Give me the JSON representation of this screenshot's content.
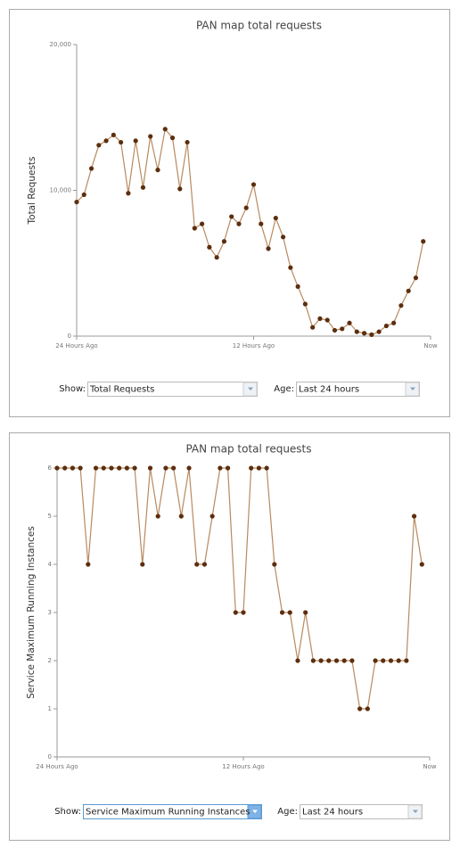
{
  "chart_data": [
    {
      "type": "line",
      "title": "PAN map total requests",
      "y_label": "Total Requests",
      "x": [
        -24,
        -23.5,
        -23,
        -22.5,
        -22,
        -21.5,
        -21,
        -20.5,
        -20,
        -19.5,
        -19,
        -18.5,
        -18,
        -17.5,
        -17,
        -16.5,
        -16,
        -15.5,
        -15,
        -14.5,
        -14,
        -13.5,
        -13,
        -12.5,
        -12,
        -11.5,
        -11,
        -10.5,
        -10,
        -9.5,
        -9,
        -8.5,
        -8,
        -7.5,
        -7,
        -6.5,
        -6,
        -5.5,
        -5,
        -4.5,
        -4,
        -3.5,
        -3,
        -2.5,
        -2,
        -1.5,
        -1,
        -0.5
      ],
      "series": [
        {
          "name": "Total Requests",
          "color": "#b88a60",
          "marker_color": "#5c2e0e",
          "values": [
            9200,
            9700,
            11500,
            13100,
            13400,
            13800,
            13300,
            9800,
            13400,
            10200,
            13700,
            11400,
            14200,
            13600,
            10100,
            13300,
            7400,
            7700,
            6100,
            5400,
            6500,
            8200,
            7700,
            8800,
            10400,
            7700,
            6000,
            8100,
            6800,
            4700,
            3400,
            2200,
            600,
            1200,
            1100,
            400,
            500,
            900,
            300,
            200,
            100,
            300,
            700,
            900,
            2100,
            3100,
            4000,
            6500
          ]
        }
      ],
      "xlim": [
        -24,
        0
      ],
      "xticks": [
        {
          "value": -24,
          "label": "24 Hours Ago"
        },
        {
          "value": -12,
          "label": "12 Hours Ago"
        },
        {
          "value": 0,
          "label": "Now"
        }
      ],
      "ylim": [
        0,
        20000
      ],
      "yticks": [
        0,
        {
          "value": 10000,
          "label": "10,000"
        },
        {
          "value": 20000,
          "label": "20,000"
        }
      ]
    },
    {
      "type": "line",
      "title": "PAN map total requests",
      "y_label": "Service Maximum Running Instances",
      "x": [
        -24,
        -23.5,
        -23,
        -22.5,
        -22,
        -21.5,
        -21,
        -20.5,
        -20,
        -19.5,
        -19,
        -18.5,
        -18,
        -17.5,
        -17,
        -16.5,
        -16,
        -15.5,
        -15,
        -14.5,
        -14,
        -13.5,
        -13,
        -12.5,
        -12,
        -11.5,
        -11,
        -10.5,
        -10,
        -9.5,
        -9,
        -8.5,
        -8,
        -7.5,
        -7,
        -6.5,
        -6,
        -5.5,
        -5,
        -4.5,
        -4,
        -3.5,
        -3,
        -2.5,
        -2,
        -1.5,
        -1,
        -0.5
      ],
      "series": [
        {
          "name": "Service Maximum Running Instances",
          "color": "#b88a60",
          "marker_color": "#5c2e0e",
          "values": [
            6,
            6,
            6,
            6,
            4,
            6,
            6,
            6,
            6,
            6,
            6,
            4,
            6,
            5,
            6,
            6,
            5,
            6,
            4,
            4,
            5,
            6,
            6,
            3,
            3,
            6,
            6,
            6,
            4,
            3,
            3,
            2,
            3,
            2,
            2,
            2,
            2,
            2,
            2,
            1,
            1,
            2,
            2,
            2,
            2,
            2,
            5,
            4
          ]
        }
      ],
      "xlim": [
        -24,
        0
      ],
      "xticks": [
        {
          "value": -24,
          "label": "24 Hours Ago"
        },
        {
          "value": -12,
          "label": "12 Hours Ago"
        },
        {
          "value": 0,
          "label": "Now"
        }
      ],
      "ylim": [
        0,
        6
      ],
      "yticks": [
        0,
        1,
        2,
        3,
        4,
        5,
        6
      ]
    }
  ],
  "controls": [
    {
      "show_label": "Show:",
      "show_value": "Total Requests",
      "age_label": "Age:",
      "age_value": "Last 24 hours"
    },
    {
      "show_label": "Show:",
      "show_value": "Service Maximum Running Instances",
      "age_label": "Age:",
      "age_value": "Last 24 hours"
    }
  ]
}
